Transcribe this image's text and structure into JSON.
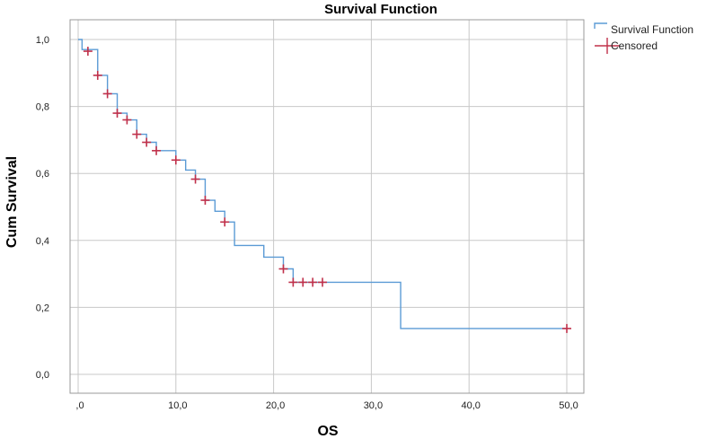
{
  "chart_data": {
    "type": "line",
    "title": "Survival Function",
    "xlabel": "OS",
    "ylabel": "Cum Survival",
    "xlim": [
      0,
      50
    ],
    "ylim": [
      0,
      1.0
    ],
    "x_ticks": [
      {
        "value": 0,
        "label": ",0"
      },
      {
        "value": 10,
        "label": "10,0"
      },
      {
        "value": 20,
        "label": "20,0"
      },
      {
        "value": 30,
        "label": "30,0"
      },
      {
        "value": 40,
        "label": "40,0"
      },
      {
        "value": 50,
        "label": "50,0"
      }
    ],
    "y_ticks": [
      {
        "value": 0,
        "label": "0,0"
      },
      {
        "value": 0.2,
        "label": "0,2"
      },
      {
        "value": 0.4,
        "label": "0,4"
      },
      {
        "value": 0.6,
        "label": "0,6"
      },
      {
        "value": 0.8,
        "label": "0,8"
      },
      {
        "value": 1.0,
        "label": "1,0"
      }
    ],
    "grid": true,
    "legend_position": "top-right",
    "series": [
      {
        "name": "Survival Function",
        "kind": "step",
        "color": "#5b9bd5",
        "points": [
          [
            0,
            1.0
          ],
          [
            0.4,
            0.97
          ],
          [
            2.0,
            0.893
          ],
          [
            3.0,
            0.838
          ],
          [
            4.0,
            0.78
          ],
          [
            5.0,
            0.76
          ],
          [
            6.0,
            0.717
          ],
          [
            7.0,
            0.693
          ],
          [
            8.0,
            0.668
          ],
          [
            10.0,
            0.64
          ],
          [
            11.0,
            0.61
          ],
          [
            12.0,
            0.583
          ],
          [
            13.0,
            0.52
          ],
          [
            14.0,
            0.487
          ],
          [
            15.0,
            0.455
          ],
          [
            16.0,
            0.385
          ],
          [
            19.0,
            0.35
          ],
          [
            21.0,
            0.315
          ],
          [
            22.0,
            0.275
          ],
          [
            33.0,
            0.137
          ],
          [
            50.0,
            0.137
          ]
        ]
      },
      {
        "name": "Censored",
        "kind": "marker",
        "color": "#c0304a",
        "points": [
          [
            1.0,
            0.965
          ],
          [
            2.0,
            0.893
          ],
          [
            3.0,
            0.838
          ],
          [
            4.0,
            0.78
          ],
          [
            5.0,
            0.76
          ],
          [
            6.0,
            0.717
          ],
          [
            7.0,
            0.693
          ],
          [
            8.0,
            0.668
          ],
          [
            10.0,
            0.64
          ],
          [
            12.0,
            0.583
          ],
          [
            13.0,
            0.52
          ],
          [
            15.0,
            0.455
          ],
          [
            21.0,
            0.315
          ],
          [
            22.0,
            0.275
          ],
          [
            23.0,
            0.275
          ],
          [
            24.0,
            0.275
          ],
          [
            25.0,
            0.275
          ],
          [
            50.0,
            0.137
          ]
        ]
      }
    ]
  }
}
